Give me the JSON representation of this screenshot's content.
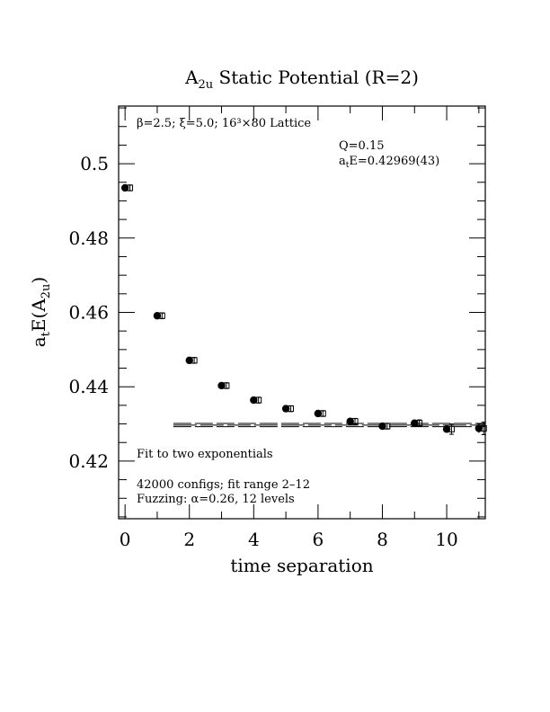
{
  "chart_data": {
    "type": "scatter",
    "title": "A",
    "title_sub": "2u",
    "title_rest": " Static Potential (R=2)",
    "xlabel": "time separation",
    "ylabel_parts": [
      "a",
      "t",
      "E(A",
      "2u",
      ")"
    ],
    "xlim": [
      -0.2,
      11.2
    ],
    "ylim": [
      0.4045,
      0.5155
    ],
    "xticks": [
      0,
      2,
      4,
      6,
      8,
      10
    ],
    "xtick_labels": [
      "0",
      "2",
      "4",
      "6",
      "8",
      "10"
    ],
    "yticks": [
      0.42,
      0.44,
      0.46,
      0.48,
      0.5
    ],
    "ytick_labels": [
      "0.42",
      "0.44",
      "0.46",
      "0.48",
      "0.5"
    ],
    "grid": false,
    "series": [
      {
        "marker": "filled-circle",
        "x": [
          0,
          1,
          2,
          3,
          4,
          5,
          6,
          7,
          8,
          9,
          10,
          11
        ],
        "y": [
          0.4935,
          0.4591,
          0.4471,
          0.4403,
          0.4364,
          0.4341,
          0.4328,
          0.4307,
          0.4294,
          0.4302,
          0.4286,
          0.4288
        ],
        "err": [
          0.0003,
          0.0003,
          0.0003,
          0.0003,
          0.0003,
          0.0003,
          0.0003,
          0.0003,
          0.0003,
          0.0004,
          0.0009,
          0.0012
        ]
      },
      {
        "marker": "open-square",
        "x": [
          0.15,
          1.15,
          2.15,
          3.15,
          4.15,
          5.15,
          6.15,
          7.15,
          8.15,
          9.15,
          10.15,
          11.15
        ],
        "y": [
          0.4935,
          0.4591,
          0.4471,
          0.4403,
          0.4364,
          0.4341,
          0.4328,
          0.4307,
          0.4294,
          0.4302,
          0.4286,
          0.4288
        ],
        "err": [
          0.0003,
          0.0003,
          0.0003,
          0.0003,
          0.0003,
          0.0003,
          0.0003,
          0.0003,
          0.0003,
          0.0004,
          0.0009,
          0.0012
        ]
      }
    ],
    "fit": {
      "x_range": [
        1.5,
        11.2
      ],
      "value": 0.42969,
      "error": 0.00043
    },
    "annotations": {
      "lattice_params": "β=2.5; ξ=5.0; 16³×80 Lattice",
      "q_value": "Q=0.15",
      "energy_prefix": "a",
      "energy_sub": "t",
      "energy_rest": "E=0.42969(43)",
      "fit_desc": "Fit to two exponentials",
      "configs": "42000 configs; fit range 2–12",
      "fuzzing": "Fuzzing: α=0.26, 12 levels"
    }
  }
}
